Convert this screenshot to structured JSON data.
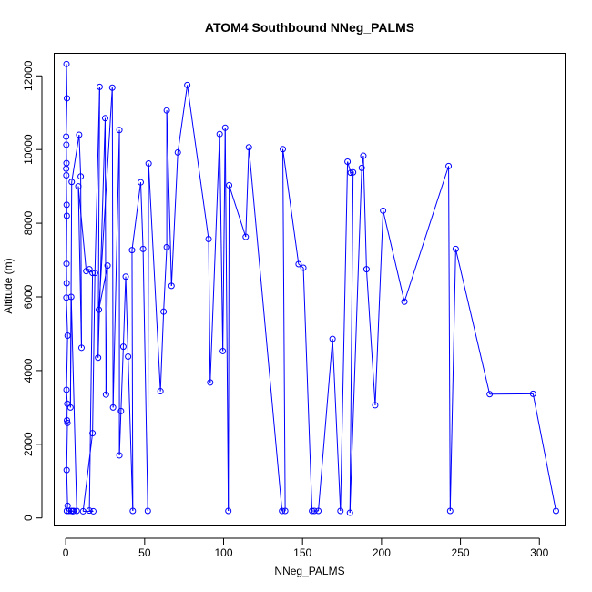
{
  "chart_data": {
    "type": "line",
    "title": "ATOM4 Southbound NNeg_PALMS",
    "xlabel": "NNeg_PALMS",
    "ylabel": "Altitude (m)",
    "xlim": [
      -7,
      316
    ],
    "ylim": [
      -180,
      12600
    ],
    "xticks": [
      0,
      50,
      100,
      150,
      200,
      250,
      300
    ],
    "yticks": [
      0,
      2000,
      4000,
      6000,
      8000,
      10000,
      12000
    ],
    "grid": false,
    "series": [
      {
        "color": "#0000ff",
        "marker": "open-circle",
        "points": [
          [
            0.5,
            12320
          ],
          [
            0.8,
            11390
          ],
          [
            0.3,
            10350
          ],
          [
            0.4,
            10130
          ],
          [
            0.5,
            9630
          ],
          [
            0.3,
            9480
          ],
          [
            0.4,
            9300
          ],
          [
            0.6,
            8500
          ],
          [
            0.7,
            8200
          ],
          [
            0.5,
            6900
          ],
          [
            0.6,
            6370
          ],
          [
            0.4,
            5980
          ],
          [
            1.2,
            4950
          ],
          [
            0.5,
            3480
          ],
          [
            1.0,
            3100
          ],
          [
            0.8,
            2650
          ],
          [
            1.1,
            2580
          ],
          [
            0.6,
            1300
          ],
          [
            1.2,
            330
          ],
          [
            0.7,
            190
          ],
          [
            3.5,
            190
          ],
          [
            5.0,
            190
          ],
          [
            2.0,
            190
          ],
          [
            4.5,
            180
          ],
          [
            7.0,
            190
          ],
          [
            3.5,
            6000
          ],
          [
            3.0,
            3000
          ],
          [
            3.8,
            9120
          ],
          [
            8.5,
            10400
          ],
          [
            9.5,
            9270
          ],
          [
            10.0,
            4620
          ],
          [
            8.0,
            9000
          ],
          [
            13.0,
            6700
          ],
          [
            15.0,
            6750
          ],
          [
            17.0,
            6650
          ],
          [
            15.0,
            200
          ],
          [
            17.5,
            180
          ],
          [
            11.0,
            180
          ],
          [
            17.0,
            2300
          ],
          [
            18.5,
            6650
          ],
          [
            21.5,
            11700
          ],
          [
            20.5,
            4350
          ],
          [
            25.0,
            10850
          ],
          [
            25.5,
            3350
          ],
          [
            26.5,
            6850
          ],
          [
            21.0,
            5650
          ],
          [
            29.5,
            11680
          ],
          [
            30.0,
            3000
          ],
          [
            34.0,
            10530
          ],
          [
            34.0,
            1700
          ],
          [
            35.0,
            2900
          ],
          [
            36.5,
            4650
          ],
          [
            38.0,
            6550
          ],
          [
            39.5,
            4380
          ],
          [
            42.5,
            190
          ],
          [
            42.0,
            7270
          ],
          [
            47.5,
            9110
          ],
          [
            49.0,
            7300
          ],
          [
            52.0,
            190
          ],
          [
            52.5,
            9620
          ],
          [
            60.0,
            3440
          ],
          [
            62.0,
            5600
          ],
          [
            64.0,
            7350
          ],
          [
            64.0,
            11060
          ],
          [
            67.0,
            6300
          ],
          [
            71.0,
            9920
          ],
          [
            77.0,
            11750
          ],
          [
            90.5,
            7570
          ],
          [
            91.5,
            3680
          ],
          [
            97.5,
            10420
          ],
          [
            99.5,
            4530
          ],
          [
            101.0,
            10590
          ],
          [
            103.0,
            190
          ],
          [
            103.5,
            9030
          ],
          [
            114.0,
            7630
          ],
          [
            116.0,
            10060
          ],
          [
            137.0,
            190
          ],
          [
            139.0,
            190
          ],
          [
            137.5,
            10010
          ],
          [
            147.5,
            6890
          ],
          [
            150.5,
            6790
          ],
          [
            156.0,
            190
          ],
          [
            157.5,
            190
          ],
          [
            160.0,
            190
          ],
          [
            169.0,
            4860
          ],
          [
            174.0,
            190
          ],
          [
            178.5,
            9670
          ],
          [
            180.5,
            9370
          ],
          [
            182.0,
            9380
          ],
          [
            180.0,
            140
          ],
          [
            187.5,
            9500
          ],
          [
            188.5,
            9830
          ],
          [
            190.5,
            6750
          ],
          [
            196.0,
            3060
          ],
          [
            201.0,
            8340
          ],
          [
            214.5,
            5870
          ],
          [
            242.5,
            9550
          ],
          [
            243.5,
            190
          ],
          [
            247.0,
            7300
          ],
          [
            268.5,
            3360
          ],
          [
            296.0,
            3370
          ],
          [
            310.5,
            190
          ]
        ]
      }
    ]
  }
}
